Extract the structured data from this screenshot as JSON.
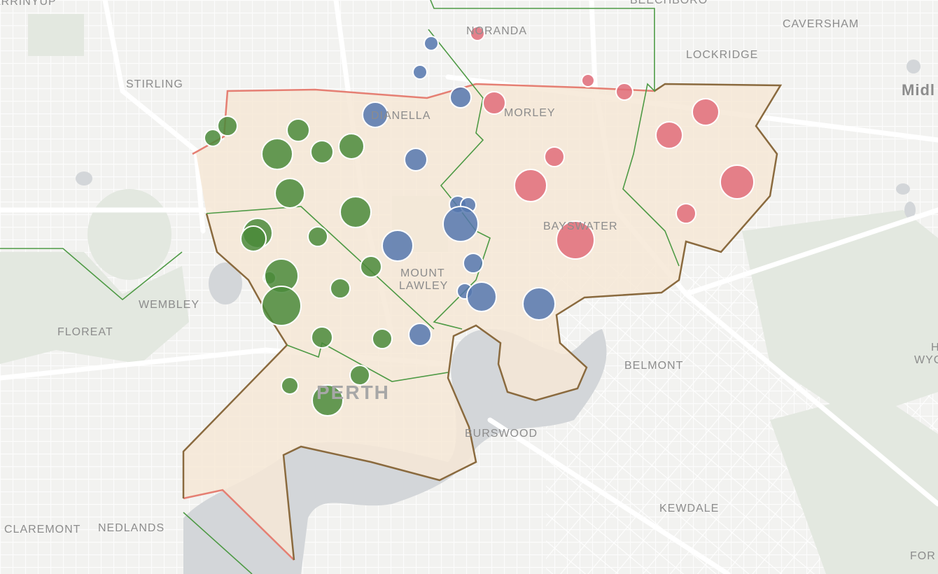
{
  "colors": {
    "land": "#f2f2f0",
    "road": "#ffffff",
    "water": "#d3d6d9",
    "park": "#e3e8e0",
    "region_fill": "#f6e7d6",
    "red_outline": "#e57f73",
    "brown_outline": "#8a6a3e",
    "green_outline": "#4e9a45",
    "marker_red": "#e06c79",
    "marker_blue": "#5577ae",
    "marker_green": "#4a8a3a"
  },
  "labels": {
    "arrinyup": "ARRINYUP",
    "beechboro": "BEECHBORO",
    "noranda": "NORANDA",
    "caversham": "CAVERSHAM",
    "lockridge": "LOCKRIDGE",
    "midland": "Midl",
    "stirling": "STIRLING",
    "dianella": "DIANELLA",
    "morley": "MORLEY",
    "bayswater": "BAYSWATER",
    "mount": "MOUNT",
    "lawley": "LAWLEY",
    "wembley": "WEMBLEY",
    "floreat": "FLOREAT",
    "perth": "PERTH",
    "belmont": "BELMONT",
    "burswood": "BURSWOOD",
    "kewdale": "KEWDALE",
    "claremont": "CLAREMONT",
    "nedlands": "NEDLANDS",
    "hazelmere_partial": "H",
    "wyc_partial": "WYC",
    "forrestfield_partial": "FOR"
  },
  "markers": [
    {
      "party": "red",
      "size": 10
    },
    {
      "party": "red",
      "size": 9
    },
    {
      "party": "red",
      "size": 12
    },
    {
      "party": "red",
      "size": 16
    },
    {
      "party": "red",
      "size": 19
    },
    {
      "party": "red",
      "size": 19
    },
    {
      "party": "red",
      "size": 14
    },
    {
      "party": "red",
      "size": 23
    },
    {
      "party": "red",
      "size": 24
    },
    {
      "party": "red",
      "size": 14
    },
    {
      "party": "red",
      "size": 27
    },
    {
      "party": "blue",
      "size": 10
    },
    {
      "party": "blue",
      "size": 10
    },
    {
      "party": "blue",
      "size": 15
    },
    {
      "party": "blue",
      "size": 18
    },
    {
      "party": "blue",
      "size": 16
    },
    {
      "party": "blue",
      "size": 12
    },
    {
      "party": "blue",
      "size": 11
    },
    {
      "party": "blue",
      "size": 25
    },
    {
      "party": "blue",
      "size": 22
    },
    {
      "party": "blue",
      "size": 14
    },
    {
      "party": "blue",
      "size": 11
    },
    {
      "party": "blue",
      "size": 21
    },
    {
      "party": "blue",
      "size": 23
    },
    {
      "party": "blue",
      "size": 16
    },
    {
      "party": "green",
      "size": 14
    },
    {
      "party": "green",
      "size": 12
    },
    {
      "party": "green",
      "size": 16
    },
    {
      "party": "green",
      "size": 22
    },
    {
      "party": "green",
      "size": 16
    },
    {
      "party": "green",
      "size": 18
    },
    {
      "party": "green",
      "size": 21
    },
    {
      "party": "green",
      "size": 22
    },
    {
      "party": "green",
      "size": 21
    },
    {
      "party": "green",
      "size": 18
    },
    {
      "party": "green",
      "size": 14
    },
    {
      "party": "green",
      "size": 15
    },
    {
      "party": "green",
      "size": 9
    },
    {
      "party": "green",
      "size": 24
    },
    {
      "party": "green",
      "size": 14
    },
    {
      "party": "green",
      "size": 28
    },
    {
      "party": "green",
      "size": 14
    },
    {
      "party": "green",
      "size": 15
    },
    {
      "party": "green",
      "size": 14
    },
    {
      "party": "green",
      "size": 12
    },
    {
      "party": "green",
      "size": 22
    }
  ]
}
